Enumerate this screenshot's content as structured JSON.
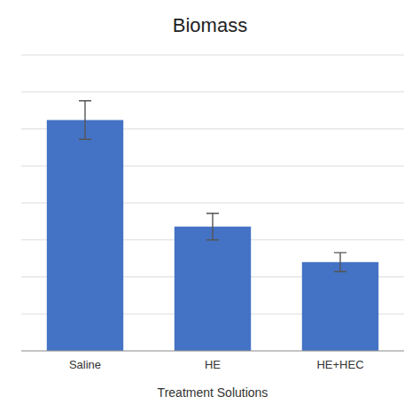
{
  "chart_data": {
    "type": "bar",
    "title": "Biomass",
    "xlabel": "Treatment Solutions",
    "categories": [
      "Saline",
      "HE",
      "HE+HEC"
    ],
    "values": [
      0.78,
      0.42,
      0.3
    ],
    "errors": [
      0.065,
      0.045,
      0.032
    ],
    "color": "#4472C4",
    "ylim": [
      0,
      1.0
    ],
    "yticks": [
      0,
      0.125,
      0.25,
      0.375,
      0.5,
      0.625,
      0.75,
      0.875,
      1.0
    ],
    "grid": true,
    "tick_labels": "x"
  }
}
